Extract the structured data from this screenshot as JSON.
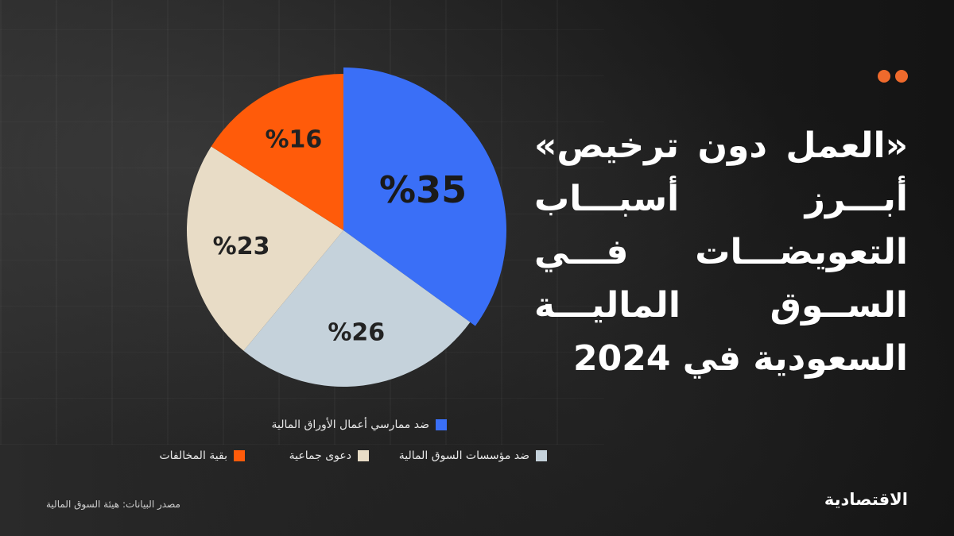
{
  "headline": {
    "lines": [
      "«العمل دون ترخيص»",
      "أبـــرز أسبـــاب",
      "التعويضـــات فـــي",
      "الســوق الماليـــة",
      "السعودية في 2024"
    ]
  },
  "chart_data": {
    "type": "pie",
    "slices": [
      {
        "label": "ضد ممارسي أعمال الأوراق المالية",
        "value": 35,
        "display": "%35",
        "color": "#3a6ff7"
      },
      {
        "label": "ضد مؤسسات السوق المالية",
        "value": 26,
        "display": "%26",
        "color": "#c5d2db"
      },
      {
        "label": "دعوى جماعية",
        "value": 23,
        "display": "%23",
        "color": "#e8dcc6"
      },
      {
        "label": "بقية المخالفات",
        "value": 16,
        "display": "%16",
        "color": "#ff5b0a"
      }
    ],
    "legend_placement": "bottom"
  },
  "source": "مصدر البيانات: هيئة السوق المالية",
  "brand": "الاقتصادية",
  "colors": {
    "accent": "#ef6a2c",
    "background": "#1a1a1a"
  }
}
